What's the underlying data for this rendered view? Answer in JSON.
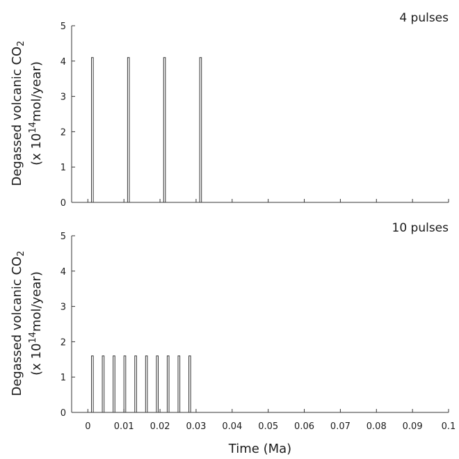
{
  "chart_data": [
    {
      "type": "bar",
      "panel_label": "4 pulses",
      "ylabel_line1_prefix": "Degassed volcanic CO",
      "ylabel_line1_sub": "2",
      "ylabel_line2_prefix": "(x 10",
      "ylabel_line2_sup": "14",
      "ylabel_line2_suffix": "mol/year)",
      "ylim": [
        0,
        5
      ],
      "xlim": [
        -0.0045,
        0.1
      ],
      "yticks": [
        "0",
        "1",
        "2",
        "3",
        "4",
        "5"
      ],
      "pulse_width": 0.0005,
      "series": [
        {
          "x": [
            0.001,
            0.011,
            0.021,
            0.031
          ],
          "values": [
            4.1,
            4.1,
            4.1,
            4.1
          ]
        }
      ]
    },
    {
      "type": "bar",
      "panel_label": "10 pulses",
      "ylabel_line1_prefix": "Degassed volcanic CO",
      "ylabel_line1_sub": "2",
      "ylabel_line2_prefix": "(x 10",
      "ylabel_line2_sup": "14",
      "ylabel_line2_suffix": "mol/year)",
      "ylim": [
        0,
        5
      ],
      "xlim": [
        -0.0045,
        0.1
      ],
      "yticks": [
        "0",
        "1",
        "2",
        "3",
        "4",
        "5"
      ],
      "xticks": [
        "0",
        "0.01",
        "0.02",
        "0.03",
        "0.04",
        "0.05",
        "0.06",
        "0.07",
        "0.08",
        "0.09",
        "0.1"
      ],
      "xlabel": "Time (Ma)",
      "pulse_width": 0.0005,
      "series": [
        {
          "x": [
            0.001,
            0.004,
            0.007,
            0.01,
            0.013,
            0.016,
            0.019,
            0.022,
            0.025,
            0.028
          ],
          "values": [
            1.6,
            1.6,
            1.6,
            1.6,
            1.6,
            1.6,
            1.6,
            1.6,
            1.6,
            1.6
          ]
        }
      ]
    }
  ]
}
